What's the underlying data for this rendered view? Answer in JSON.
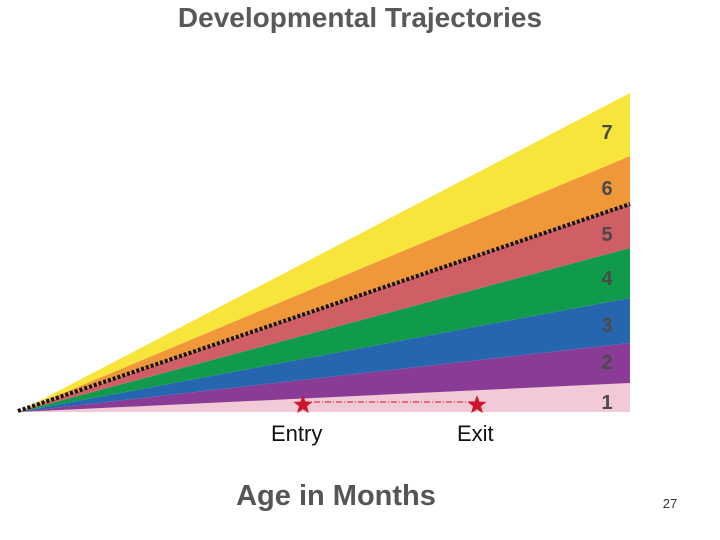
{
  "title": "Developmental Trajectories",
  "xlabel": "Age in Months",
  "page_number": "27",
  "bands": [
    {
      "label": "1",
      "color": "#f2c9d6"
    },
    {
      "label": "2",
      "color": "#8a3b96"
    },
    {
      "label": "3",
      "color": "#2566ae"
    },
    {
      "label": "4",
      "color": "#0f9a4c"
    },
    {
      "label": "5",
      "color": "#cf5f64"
    },
    {
      "label": "6",
      "color": "#f0973a"
    },
    {
      "label": "7",
      "color": "#f7e53c"
    }
  ],
  "markers": [
    {
      "label": "Entry",
      "color": "#d0142c"
    },
    {
      "label": "Exit",
      "color": "#d0142c"
    }
  ]
}
